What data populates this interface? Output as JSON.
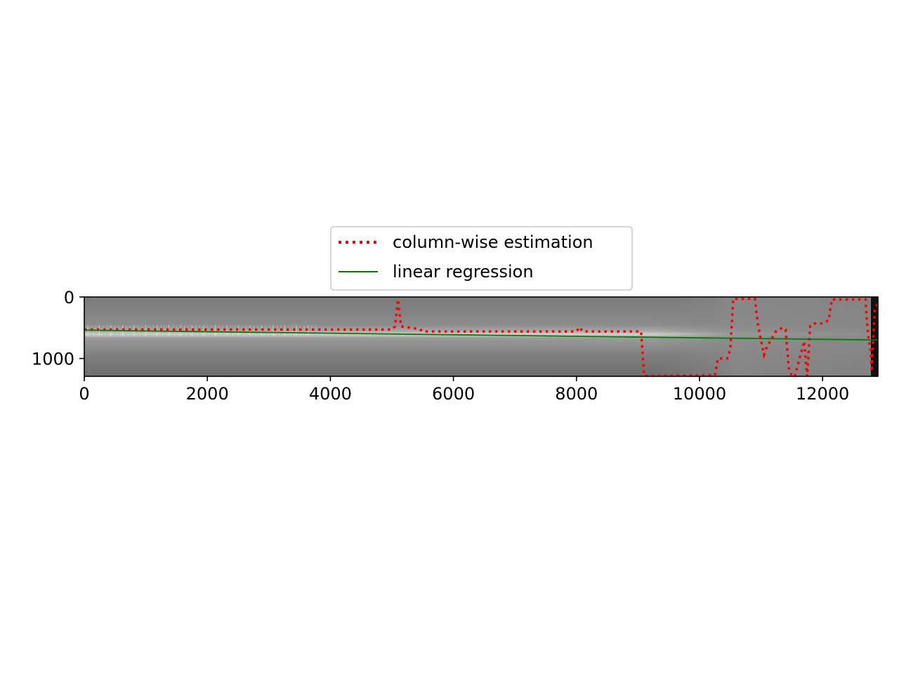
{
  "chart_data": {
    "type": "line",
    "title": "",
    "xlabel": "",
    "ylabel": "",
    "background": "grayscale image (wide scan strip)",
    "xlim": [
      0,
      12900
    ],
    "ylim": [
      1290,
      0
    ],
    "y_inverted": true,
    "grid": false,
    "x_ticks": [
      0,
      2000,
      4000,
      6000,
      8000,
      10000,
      12000
    ],
    "x_tick_labels": [
      "0",
      "2000",
      "4000",
      "6000",
      "8000",
      "10000",
      "12000"
    ],
    "y_ticks": [
      0,
      1000
    ],
    "y_tick_labels": [
      "0",
      "1000"
    ],
    "legend": {
      "placement": "upper center, above axes",
      "entries": [
        {
          "label": "column-wise estimation",
          "style": "dotted",
          "color": "#ff0000"
        },
        {
          "label": "linear regression",
          "style": "solid",
          "color": "#008000"
        }
      ]
    },
    "series": [
      {
        "name": "column-wise estimation",
        "color": "#ff0000",
        "style": "dotted",
        "x": [
          0,
          5000,
          5050,
          5100,
          5150,
          5450,
          5500,
          8000,
          8050,
          8100,
          9050,
          9100,
          9700,
          10250,
          10300,
          10450,
          10500,
          10550,
          10900,
          10950,
          11000,
          11050,
          11100,
          11250,
          11350,
          11400,
          11450,
          11500,
          11550,
          11700,
          11750,
          11800,
          11850,
          12000,
          12100,
          12150,
          12700,
          12720,
          12750,
          12780,
          12800,
          12850,
          12900
        ],
        "y": [
          530,
          530,
          480,
          40,
          480,
          520,
          560,
          560,
          490,
          560,
          560,
          1280,
          1280,
          1270,
          1000,
          1000,
          850,
          30,
          30,
          450,
          710,
          940,
          800,
          550,
          500,
          530,
          1150,
          1290,
          1290,
          720,
          1290,
          470,
          430,
          430,
          380,
          40,
          40,
          380,
          700,
          850,
          1210,
          200,
          100
        ]
      },
      {
        "name": "linear regression",
        "color": "#008000",
        "style": "solid",
        "x": [
          0,
          12900
        ],
        "y": [
          540,
          700
        ]
      }
    ]
  }
}
